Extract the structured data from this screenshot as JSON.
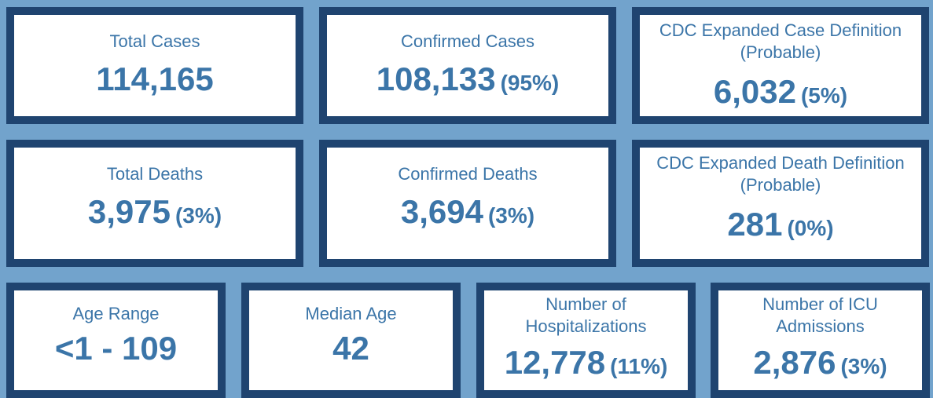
{
  "colors": {
    "background": "#72a3cc",
    "card_border": "#1f4470",
    "card_fill": "#ffffff",
    "text": "#3b75a8"
  },
  "cards": {
    "total_cases": {
      "label": "Total Cases",
      "value": "114,165"
    },
    "confirmed_cases": {
      "label": "Confirmed Cases",
      "value": "108,133",
      "pct": "(95%)"
    },
    "probable_cases": {
      "label_line1": "CDC Expanded Case Definition",
      "label_line2": "(Probable)",
      "value": "6,032",
      "pct": "(5%)"
    },
    "total_deaths": {
      "label": "Total Deaths",
      "value": "3,975",
      "pct": "(3%)"
    },
    "confirmed_deaths": {
      "label": "Confirmed Deaths",
      "value": "3,694",
      "pct": "(3%)"
    },
    "probable_deaths": {
      "label_line1": "CDC Expanded Death Definition",
      "label_line2": "(Probable)",
      "value": "281",
      "pct": "(0%)"
    },
    "age_range": {
      "label": "Age Range",
      "value": "<1 - 109"
    },
    "median_age": {
      "label": "Median Age",
      "value": "42"
    },
    "hospitalizations": {
      "label_line1": "Number of",
      "label_line2": "Hospitalizations",
      "value": "12,778",
      "pct": "(11%)"
    },
    "icu_admissions": {
      "label_line1": "Number of ICU",
      "label_line2": "Admissions",
      "value": "2,876",
      "pct": "(3%)"
    }
  }
}
